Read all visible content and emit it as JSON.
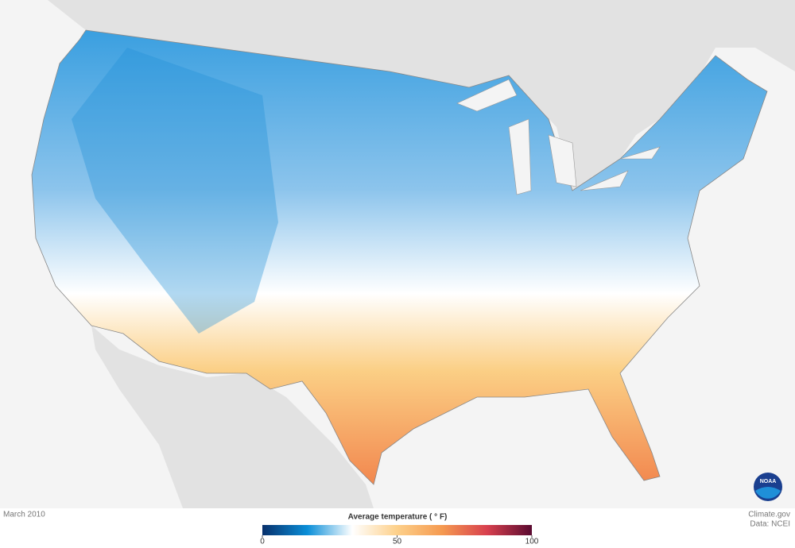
{
  "caption": {
    "date": "March 2010",
    "source": "Climate.gov",
    "data": "Data: NCEI"
  },
  "logo": "NOAA",
  "legend": {
    "title": "Average temperature ( ° F)",
    "lim": [
      0,
      100
    ],
    "ticks": [
      0,
      50,
      100
    ],
    "colors": [
      "#08306b",
      "#0a8ed8",
      "#ffffff",
      "#fdd08a",
      "#f59a50",
      "#d8404e",
      "#5a0a30"
    ]
  }
}
